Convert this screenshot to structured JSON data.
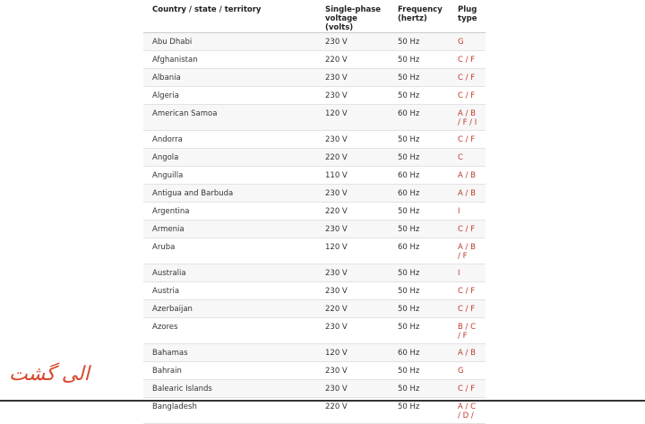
{
  "table": {
    "header": [
      "Country / state / territory",
      "Single-phase voltage (volts)",
      "Frequency (hertz)",
      "Plug type"
    ],
    "rows": [
      [
        "Abu Dhabi",
        "230 V",
        "50 Hz",
        "G"
      ],
      [
        "Afghanistan",
        "220 V",
        "50 Hz",
        "C / F"
      ],
      [
        "Albania",
        "230 V",
        "50 Hz",
        "C / F"
      ],
      [
        "Algeria",
        "230 V",
        "50 Hz",
        "C / F"
      ],
      [
        "American Samoa",
        "120 V",
        "60 Hz",
        "A / B / F / I"
      ],
      [
        "Andorra",
        "230 V",
        "50 Hz",
        "C / F"
      ],
      [
        "Angola",
        "220 V",
        "50 Hz",
        "C"
      ],
      [
        "Anguilla",
        "110 V",
        "60 Hz",
        "A / B"
      ],
      [
        "Antigua and Barbuda",
        "230 V",
        "60 Hz",
        "A / B"
      ],
      [
        "Argentina",
        "220 V",
        "50 Hz",
        "I"
      ],
      [
        "Armenia",
        "230 V",
        "50 Hz",
        "C / F"
      ],
      [
        "Aruba",
        "120 V",
        "60 Hz",
        "A / B / F"
      ],
      [
        "Australia",
        "230 V",
        "50 Hz",
        "I"
      ],
      [
        "Austria",
        "230 V",
        "50 Hz",
        "C / F"
      ],
      [
        "Azerbaijan",
        "220 V",
        "50 Hz",
        "C / F"
      ],
      [
        "Azores",
        "230 V",
        "50 Hz",
        "B / C / F"
      ],
      [
        "Bahamas",
        "120 V",
        "60 Hz",
        "A / B"
      ],
      [
        "Bahrain",
        "230 V",
        "50 Hz",
        "G"
      ],
      [
        "Balearic Islands",
        "230 V",
        "50 Hz",
        "C / F"
      ],
      [
        "Bangladesh",
        "220 V",
        "50 Hz",
        "A / C / D /"
      ]
    ]
  },
  "watermark": "الی گشت"
}
